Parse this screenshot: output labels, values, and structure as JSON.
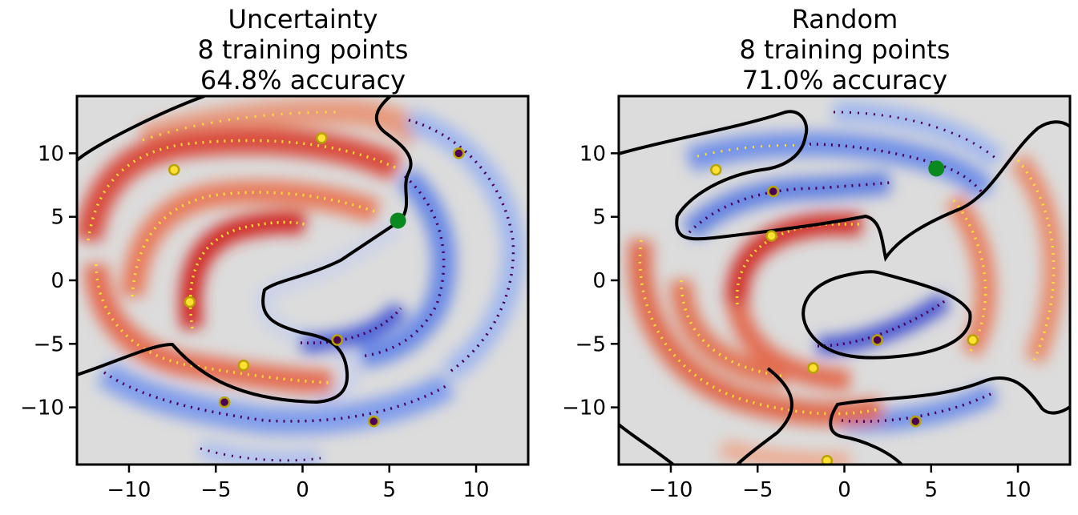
{
  "chart_data": [
    {
      "type": "scatter",
      "title": [
        "Uncertainty",
        "8 training points",
        "64.8% accuracy"
      ],
      "xlim": [
        -13,
        13
      ],
      "ylim": [
        -14.5,
        14.5
      ],
      "xticks": [
        -10,
        -5,
        0,
        5,
        10
      ],
      "yticks": [
        -10,
        -5,
        0,
        5,
        10
      ],
      "xtick_labels": [
        "−10",
        "−5",
        "0",
        "5",
        "10"
      ],
      "ytick_labels": [
        "−10",
        "−5",
        "0",
        "5",
        "10"
      ],
      "grid": false,
      "background": "#dcdcdc",
      "class_colors": {
        "class_0": "#ffe033",
        "class_1": "#4b0055"
      },
      "training_points": [
        {
          "x": -7.4,
          "y": 8.7,
          "class": "class_0"
        },
        {
          "x": 1.1,
          "y": 11.2,
          "class": "class_0"
        },
        {
          "x": -6.5,
          "y": -1.7,
          "class": "class_0"
        },
        {
          "x": -3.4,
          "y": -6.7,
          "class": "class_0"
        },
        {
          "x": 9.0,
          "y": 10.0,
          "class": "class_1"
        },
        {
          "x": 2.0,
          "y": -4.7,
          "class": "class_1"
        },
        {
          "x": -4.5,
          "y": -9.6,
          "class": "class_1"
        },
        {
          "x": 4.1,
          "y": -11.1,
          "class": "class_1"
        }
      ],
      "next_query": {
        "x": 5.5,
        "y": 4.7,
        "color": "#0a8a1e"
      }
    },
    {
      "type": "scatter",
      "title": [
        "Random",
        "8 training points",
        "71.0% accuracy"
      ],
      "xlim": [
        -13,
        13
      ],
      "ylim": [
        -14.5,
        14.5
      ],
      "xticks": [
        -10,
        -5,
        0,
        5,
        10
      ],
      "yticks": [
        -10,
        -5,
        0,
        5,
        10
      ],
      "xtick_labels": [
        "−10",
        "−5",
        "0",
        "5",
        "10"
      ],
      "ytick_labels": [
        "−10",
        "−5",
        "0",
        "5",
        "10"
      ],
      "grid": false,
      "background": "#dcdcdc",
      "class_colors": {
        "class_0": "#ffe033",
        "class_1": "#4b0055"
      },
      "training_points": [
        {
          "x": -7.4,
          "y": 8.7,
          "class": "class_0"
        },
        {
          "x": -4.2,
          "y": 3.5,
          "class": "class_0"
        },
        {
          "x": -1.8,
          "y": -6.9,
          "class": "class_0"
        },
        {
          "x": 7.4,
          "y": -4.7,
          "class": "class_0"
        },
        {
          "x": -1.0,
          "y": -14.2,
          "class": "class_0"
        },
        {
          "x": -4.1,
          "y": 7.0,
          "class": "class_1"
        },
        {
          "x": 1.9,
          "y": -4.7,
          "class": "class_1"
        },
        {
          "x": 4.1,
          "y": -11.1,
          "class": "class_1"
        }
      ],
      "next_query": {
        "x": 5.3,
        "y": 8.8,
        "color": "#0a8a1e"
      }
    }
  ]
}
